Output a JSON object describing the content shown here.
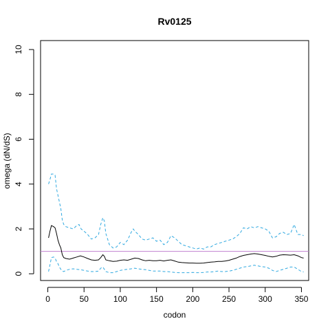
{
  "chart_data": {
    "type": "line",
    "title": "Rv0125",
    "xlabel": "codon",
    "ylabel": "omega (dN/dS)",
    "xlim": [
      -10,
      360
    ],
    "ylim": [
      -0.3,
      10.4
    ],
    "x_ticks": [
      0,
      50,
      100,
      150,
      200,
      250,
      300,
      350
    ],
    "y_ticks": [
      0,
      2,
      4,
      6,
      8,
      10
    ],
    "reference_line": {
      "y": 1,
      "color": "#c080d0"
    },
    "colors": {
      "mean": "#000000",
      "bounds": "#2ea8e0"
    },
    "series": [
      {
        "style": "solid",
        "color": "#000000",
        "points": [
          [
            1,
            1.6
          ],
          [
            3,
            1.9
          ],
          [
            5,
            2.15
          ],
          [
            8,
            2.1
          ],
          [
            10,
            2.05
          ],
          [
            12,
            1.8
          ],
          [
            14,
            1.5
          ],
          [
            16,
            1.3
          ],
          [
            18,
            1.15
          ],
          [
            20,
            0.85
          ],
          [
            22,
            0.72
          ],
          [
            25,
            0.68
          ],
          [
            30,
            0.65
          ],
          [
            35,
            0.7
          ],
          [
            40,
            0.75
          ],
          [
            45,
            0.8
          ],
          [
            50,
            0.75
          ],
          [
            55,
            0.68
          ],
          [
            60,
            0.62
          ],
          [
            65,
            0.6
          ],
          [
            70,
            0.62
          ],
          [
            73,
            0.72
          ],
          [
            76,
            0.85
          ],
          [
            78,
            0.78
          ],
          [
            80,
            0.62
          ],
          [
            85,
            0.58
          ],
          [
            90,
            0.55
          ],
          [
            95,
            0.56
          ],
          [
            100,
            0.6
          ],
          [
            105,
            0.62
          ],
          [
            110,
            0.6
          ],
          [
            115,
            0.65
          ],
          [
            120,
            0.7
          ],
          [
            125,
            0.68
          ],
          [
            130,
            0.62
          ],
          [
            135,
            0.58
          ],
          [
            140,
            0.6
          ],
          [
            145,
            0.58
          ],
          [
            150,
            0.58
          ],
          [
            155,
            0.6
          ],
          [
            160,
            0.57
          ],
          [
            165,
            0.6
          ],
          [
            170,
            0.62
          ],
          [
            175,
            0.57
          ],
          [
            180,
            0.52
          ],
          [
            185,
            0.5
          ],
          [
            190,
            0.49
          ],
          [
            195,
            0.48
          ],
          [
            200,
            0.48
          ],
          [
            205,
            0.47
          ],
          [
            210,
            0.47
          ],
          [
            215,
            0.48
          ],
          [
            220,
            0.5
          ],
          [
            225,
            0.52
          ],
          [
            230,
            0.53
          ],
          [
            235,
            0.55
          ],
          [
            240,
            0.55
          ],
          [
            245,
            0.57
          ],
          [
            250,
            0.6
          ],
          [
            255,
            0.65
          ],
          [
            260,
            0.7
          ],
          [
            265,
            0.77
          ],
          [
            270,
            0.82
          ],
          [
            275,
            0.85
          ],
          [
            280,
            0.88
          ],
          [
            285,
            0.9
          ],
          [
            290,
            0.88
          ],
          [
            295,
            0.85
          ],
          [
            300,
            0.82
          ],
          [
            305,
            0.78
          ],
          [
            310,
            0.75
          ],
          [
            315,
            0.78
          ],
          [
            320,
            0.83
          ],
          [
            325,
            0.85
          ],
          [
            330,
            0.84
          ],
          [
            335,
            0.83
          ],
          [
            340,
            0.85
          ],
          [
            345,
            0.8
          ],
          [
            350,
            0.72
          ],
          [
            353,
            0.7
          ]
        ]
      },
      {
        "style": "dashed",
        "color": "#2ea8e0",
        "points": [
          [
            1,
            4.0
          ],
          [
            3,
            4.2
          ],
          [
            5,
            4.45
          ],
          [
            8,
            4.45
          ],
          [
            10,
            4.4
          ],
          [
            12,
            3.8
          ],
          [
            14,
            3.5
          ],
          [
            16,
            3.2
          ],
          [
            18,
            2.9
          ],
          [
            20,
            2.4
          ],
          [
            22,
            2.2
          ],
          [
            25,
            2.1
          ],
          [
            30,
            2.05
          ],
          [
            35,
            2.0
          ],
          [
            40,
            2.15
          ],
          [
            43,
            2.2
          ],
          [
            46,
            2.0
          ],
          [
            50,
            1.9
          ],
          [
            55,
            1.75
          ],
          [
            60,
            1.55
          ],
          [
            65,
            1.6
          ],
          [
            70,
            1.75
          ],
          [
            73,
            2.2
          ],
          [
            76,
            2.5
          ],
          [
            78,
            2.35
          ],
          [
            80,
            1.8
          ],
          [
            85,
            1.3
          ],
          [
            90,
            1.15
          ],
          [
            95,
            1.2
          ],
          [
            100,
            1.4
          ],
          [
            105,
            1.3
          ],
          [
            110,
            1.5
          ],
          [
            115,
            1.85
          ],
          [
            118,
            2.0
          ],
          [
            120,
            1.9
          ],
          [
            125,
            1.75
          ],
          [
            130,
            1.55
          ],
          [
            135,
            1.5
          ],
          [
            140,
            1.55
          ],
          [
            145,
            1.6
          ],
          [
            150,
            1.45
          ],
          [
            155,
            1.5
          ],
          [
            160,
            1.3
          ],
          [
            165,
            1.4
          ],
          [
            170,
            1.7
          ],
          [
            175,
            1.6
          ],
          [
            180,
            1.45
          ],
          [
            185,
            1.3
          ],
          [
            190,
            1.25
          ],
          [
            195,
            1.2
          ],
          [
            200,
            1.15
          ],
          [
            205,
            1.1
          ],
          [
            210,
            1.15
          ],
          [
            215,
            1.1
          ],
          [
            220,
            1.2
          ],
          [
            225,
            1.2
          ],
          [
            230,
            1.3
          ],
          [
            235,
            1.35
          ],
          [
            240,
            1.4
          ],
          [
            245,
            1.45
          ],
          [
            250,
            1.5
          ],
          [
            255,
            1.55
          ],
          [
            260,
            1.65
          ],
          [
            265,
            1.8
          ],
          [
            270,
            2.05
          ],
          [
            275,
            2.0
          ],
          [
            280,
            2.1
          ],
          [
            285,
            2.05
          ],
          [
            290,
            2.1
          ],
          [
            295,
            2.05
          ],
          [
            300,
            2.0
          ],
          [
            305,
            1.9
          ],
          [
            310,
            1.6
          ],
          [
            315,
            1.65
          ],
          [
            320,
            1.8
          ],
          [
            325,
            1.85
          ],
          [
            330,
            1.75
          ],
          [
            335,
            1.8
          ],
          [
            340,
            2.2
          ],
          [
            345,
            1.75
          ],
          [
            350,
            1.75
          ],
          [
            353,
            1.7
          ]
        ]
      },
      {
        "style": "dashed",
        "color": "#2ea8e0",
        "points": [
          [
            1,
            0.1
          ],
          [
            3,
            0.4
          ],
          [
            5,
            0.72
          ],
          [
            8,
            0.75
          ],
          [
            10,
            0.7
          ],
          [
            12,
            0.55
          ],
          [
            14,
            0.45
          ],
          [
            16,
            0.3
          ],
          [
            18,
            0.2
          ],
          [
            20,
            0.12
          ],
          [
            22,
            0.1
          ],
          [
            25,
            0.15
          ],
          [
            30,
            0.2
          ],
          [
            35,
            0.22
          ],
          [
            40,
            0.2
          ],
          [
            45,
            0.18
          ],
          [
            50,
            0.15
          ],
          [
            55,
            0.12
          ],
          [
            60,
            0.1
          ],
          [
            65,
            0.1
          ],
          [
            70,
            0.12
          ],
          [
            73,
            0.25
          ],
          [
            76,
            0.3
          ],
          [
            78,
            0.2
          ],
          [
            80,
            0.1
          ],
          [
            85,
            0.05
          ],
          [
            90,
            0.05
          ],
          [
            95,
            0.1
          ],
          [
            100,
            0.15
          ],
          [
            105,
            0.18
          ],
          [
            110,
            0.2
          ],
          [
            115,
            0.22
          ],
          [
            120,
            0.25
          ],
          [
            125,
            0.22
          ],
          [
            130,
            0.2
          ],
          [
            135,
            0.18
          ],
          [
            140,
            0.15
          ],
          [
            145,
            0.12
          ],
          [
            150,
            0.12
          ],
          [
            155,
            0.12
          ],
          [
            160,
            0.1
          ],
          [
            165,
            0.1
          ],
          [
            170,
            0.08
          ],
          [
            175,
            0.06
          ],
          [
            180,
            0.05
          ],
          [
            185,
            0.05
          ],
          [
            190,
            0.05
          ],
          [
            195,
            0.05
          ],
          [
            200,
            0.06
          ],
          [
            205,
            0.05
          ],
          [
            210,
            0.05
          ],
          [
            215,
            0.06
          ],
          [
            220,
            0.08
          ],
          [
            225,
            0.08
          ],
          [
            230,
            0.1
          ],
          [
            235,
            0.12
          ],
          [
            240,
            0.1
          ],
          [
            245,
            0.1
          ],
          [
            250,
            0.12
          ],
          [
            255,
            0.15
          ],
          [
            260,
            0.2
          ],
          [
            265,
            0.25
          ],
          [
            270,
            0.3
          ],
          [
            275,
            0.32
          ],
          [
            280,
            0.35
          ],
          [
            285,
            0.38
          ],
          [
            290,
            0.35
          ],
          [
            295,
            0.32
          ],
          [
            300,
            0.3
          ],
          [
            305,
            0.25
          ],
          [
            310,
            0.15
          ],
          [
            315,
            0.1
          ],
          [
            320,
            0.15
          ],
          [
            325,
            0.2
          ],
          [
            330,
            0.25
          ],
          [
            335,
            0.3
          ],
          [
            340,
            0.3
          ],
          [
            345,
            0.2
          ],
          [
            350,
            0.1
          ],
          [
            353,
            0.08
          ]
        ]
      }
    ]
  }
}
